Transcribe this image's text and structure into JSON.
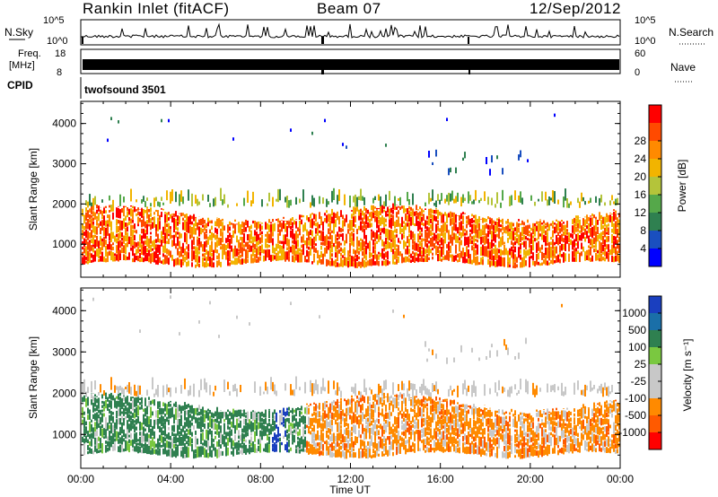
{
  "header": {
    "title": "Rankin Inlet (fitACF)",
    "beam": "Beam 07",
    "date": "12/Sep/2012"
  },
  "top_panels": {
    "nsky_label": "N.Sky",
    "nsky_tick_top": "10^5",
    "nsky_tick_bottom": "10^0",
    "nsearch_label": "N.Search",
    "nsearch_tick_top": "10^5",
    "nsearch_tick_bottom": "10^0",
    "freq_label": "Freq.",
    "freq_unit": "[MHz]",
    "freq_tick_top": "18",
    "freq_tick_bottom": "8",
    "nave_label": "Nave",
    "nave_tick_top": "60",
    "nave_tick_bottom": "0",
    "cpid_label": "CPID",
    "cpid_value": "twofsound 3501"
  },
  "chart_data": [
    {
      "type": "heatmap",
      "quantity": "Power",
      "ylabel": "Slant Range [km]",
      "xlabel": "Time UT",
      "x_range_hours": [
        0,
        24
      ],
      "x_ticks": [
        "00:00",
        "04:00",
        "08:00",
        "12:00",
        "16:00",
        "20:00",
        "00:00"
      ],
      "ylim": [
        180,
        4550
      ],
      "y_ticks": [
        1000,
        2000,
        3000,
        4000
      ],
      "colorbar_label": "Power [dB]",
      "colorbar_ticks": [
        4,
        8,
        12,
        16,
        20,
        24,
        28
      ],
      "colorbar_colors": [
        "#0000ff",
        "#1a4fbf",
        "#2f8050",
        "#55a84a",
        "#b4c43a",
        "#f2b400",
        "#ff8a00",
        "#ff4a00",
        "#ff0000"
      ],
      "main_band_km": [
        600,
        1700
      ],
      "secondary_band_km": [
        1900,
        2500
      ]
    },
    {
      "type": "heatmap",
      "quantity": "Velocity",
      "ylabel": "Slant Range [km]",
      "xlabel": "Time UT",
      "x_range_hours": [
        0,
        24
      ],
      "x_ticks": [
        "00:00",
        "04:00",
        "08:00",
        "12:00",
        "16:00",
        "20:00",
        "00:00"
      ],
      "ylim": [
        180,
        4550
      ],
      "y_ticks": [
        1000,
        2000,
        3000,
        4000
      ],
      "colorbar_label": "Velocity [m s⁻¹]",
      "colorbar_ticks": [
        "1000",
        "500",
        "100",
        "25",
        "-25",
        "-100",
        "-500",
        "-1000"
      ],
      "colorbar_colors": [
        "#1a3fbf",
        "#1a6fa8",
        "#2f8050",
        "#7ac840",
        "#c8c8c8",
        "#c8c8c8",
        "#ff8a00",
        "#ff5a00",
        "#ff0000"
      ],
      "main_band_km": [
        600,
        1700
      ],
      "secondary_band_km": [
        1900,
        2500
      ]
    }
  ]
}
